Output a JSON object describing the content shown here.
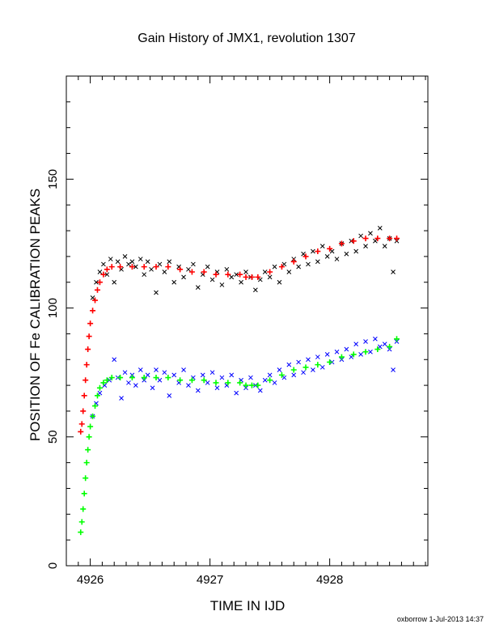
{
  "chart_data": {
    "type": "scatter",
    "title": "Gain History of JMX1, revolution 1307",
    "xlabel": "TIME IN IJD",
    "ylabel": "POSITION OF Fe CALIBRATION PEAKS",
    "xlim": [
      4925.8,
      4928.82
    ],
    "ylim": [
      0,
      190
    ],
    "xticks": [
      4926,
      4927,
      4928
    ],
    "yticks": [
      0,
      50,
      100,
      150
    ],
    "grid": false,
    "legend": "none",
    "series": [
      {
        "marker": "x",
        "color": "#000000",
        "points": [
          [
            4926.02,
            104
          ],
          [
            4926.05,
            110
          ],
          [
            4926.08,
            114
          ],
          [
            4926.11,
            117
          ],
          [
            4926.14,
            113
          ],
          [
            4926.17,
            119
          ],
          [
            4926.2,
            110
          ],
          [
            4926.23,
            118
          ],
          [
            4926.26,
            115
          ],
          [
            4926.29,
            120
          ],
          [
            4926.32,
            117
          ],
          [
            4926.35,
            118
          ],
          [
            4926.38,
            116
          ],
          [
            4926.42,
            119
          ],
          [
            4926.45,
            113
          ],
          [
            4926.48,
            118
          ],
          [
            4926.51,
            115
          ],
          [
            4926.55,
            106
          ],
          [
            4926.58,
            117
          ],
          [
            4926.62,
            114
          ],
          [
            4926.66,
            118
          ],
          [
            4926.7,
            110
          ],
          [
            4926.74,
            116
          ],
          [
            4926.78,
            112
          ],
          [
            4926.82,
            115
          ],
          [
            4926.86,
            117
          ],
          [
            4926.9,
            108
          ],
          [
            4926.94,
            113
          ],
          [
            4926.98,
            116
          ],
          [
            4927.02,
            111
          ],
          [
            4927.06,
            114
          ],
          [
            4927.1,
            109
          ],
          [
            4927.14,
            115
          ],
          [
            4927.18,
            112
          ],
          [
            4927.22,
            113
          ],
          [
            4927.26,
            110
          ],
          [
            4927.3,
            114
          ],
          [
            4927.34,
            112
          ],
          [
            4927.38,
            107
          ],
          [
            4927.42,
            111
          ],
          [
            4927.46,
            114
          ],
          [
            4927.5,
            112
          ],
          [
            4927.54,
            116
          ],
          [
            4927.58,
            110
          ],
          [
            4927.62,
            117
          ],
          [
            4927.66,
            114
          ],
          [
            4927.7,
            119
          ],
          [
            4927.74,
            116
          ],
          [
            4927.78,
            121
          ],
          [
            4927.82,
            117
          ],
          [
            4927.86,
            122
          ],
          [
            4927.9,
            118
          ],
          [
            4927.94,
            124
          ],
          [
            4927.98,
            120
          ],
          [
            4928.02,
            122
          ],
          [
            4928.06,
            119
          ],
          [
            4928.1,
            125
          ],
          [
            4928.14,
            121
          ],
          [
            4928.18,
            126
          ],
          [
            4928.22,
            122
          ],
          [
            4928.26,
            128
          ],
          [
            4928.3,
            124
          ],
          [
            4928.34,
            129
          ],
          [
            4928.38,
            126
          ],
          [
            4928.42,
            131
          ],
          [
            4928.46,
            124
          ],
          [
            4928.5,
            127
          ],
          [
            4928.53,
            114
          ],
          [
            4928.56,
            126
          ]
        ]
      },
      {
        "marker": "x",
        "color": "#0000ff",
        "points": [
          [
            4926.02,
            58
          ],
          [
            4926.05,
            63
          ],
          [
            4926.08,
            67
          ],
          [
            4926.12,
            70
          ],
          [
            4926.16,
            72
          ],
          [
            4926.2,
            80
          ],
          [
            4926.23,
            73
          ],
          [
            4926.26,
            65
          ],
          [
            4926.29,
            75
          ],
          [
            4926.32,
            71
          ],
          [
            4926.35,
            74
          ],
          [
            4926.38,
            70
          ],
          [
            4926.42,
            76
          ],
          [
            4926.45,
            72
          ],
          [
            4926.48,
            74
          ],
          [
            4926.52,
            69
          ],
          [
            4926.55,
            76
          ],
          [
            4926.58,
            72
          ],
          [
            4926.62,
            75
          ],
          [
            4926.66,
            66
          ],
          [
            4926.7,
            74
          ],
          [
            4926.74,
            71
          ],
          [
            4926.78,
            76
          ],
          [
            4926.82,
            70
          ],
          [
            4926.86,
            73
          ],
          [
            4926.9,
            68
          ],
          [
            4926.94,
            74
          ],
          [
            4926.98,
            71
          ],
          [
            4927.02,
            75
          ],
          [
            4927.06,
            69
          ],
          [
            4927.1,
            73
          ],
          [
            4927.14,
            70
          ],
          [
            4927.18,
            74
          ],
          [
            4927.22,
            67
          ],
          [
            4927.26,
            72
          ],
          [
            4927.3,
            69
          ],
          [
            4927.34,
            73
          ],
          [
            4927.38,
            70
          ],
          [
            4927.42,
            68
          ],
          [
            4927.46,
            72
          ],
          [
            4927.5,
            74
          ],
          [
            4927.54,
            71
          ],
          [
            4927.58,
            76
          ],
          [
            4927.62,
            73
          ],
          [
            4927.66,
            78
          ],
          [
            4927.7,
            74
          ],
          [
            4927.74,
            79
          ],
          [
            4927.78,
            75
          ],
          [
            4927.82,
            80
          ],
          [
            4927.86,
            76
          ],
          [
            4927.9,
            81
          ],
          [
            4927.94,
            77
          ],
          [
            4927.98,
            82
          ],
          [
            4928.02,
            79
          ],
          [
            4928.06,
            83
          ],
          [
            4928.1,
            80
          ],
          [
            4928.14,
            84
          ],
          [
            4928.18,
            81
          ],
          [
            4928.22,
            86
          ],
          [
            4928.26,
            82
          ],
          [
            4928.3,
            87
          ],
          [
            4928.34,
            83
          ],
          [
            4928.38,
            88
          ],
          [
            4928.42,
            85
          ],
          [
            4928.46,
            86
          ],
          [
            4928.5,
            84
          ],
          [
            4928.53,
            76
          ],
          [
            4928.56,
            87
          ]
        ]
      },
      {
        "marker": "+",
        "color": "#ff0000",
        "points": [
          [
            4925.92,
            52
          ],
          [
            4925.93,
            55
          ],
          [
            4925.94,
            60
          ],
          [
            4925.95,
            66
          ],
          [
            4925.96,
            72
          ],
          [
            4925.97,
            78
          ],
          [
            4925.98,
            84
          ],
          [
            4925.99,
            89
          ],
          [
            4926.0,
            94
          ],
          [
            4926.02,
            99
          ],
          [
            4926.04,
            103
          ],
          [
            4926.06,
            107
          ],
          [
            4926.08,
            110
          ],
          [
            4926.11,
            113
          ],
          [
            4926.14,
            115
          ],
          [
            4926.18,
            116
          ],
          [
            4926.25,
            116
          ],
          [
            4926.35,
            116
          ],
          [
            4926.45,
            116
          ],
          [
            4926.55,
            116
          ],
          [
            4926.65,
            116
          ],
          [
            4926.75,
            115
          ],
          [
            4926.85,
            114
          ],
          [
            4926.95,
            114
          ],
          [
            4927.05,
            113
          ],
          [
            4927.15,
            113
          ],
          [
            4927.25,
            113
          ],
          [
            4927.3,
            112
          ],
          [
            4927.35,
            112
          ],
          [
            4927.4,
            112
          ],
          [
            4927.5,
            114
          ],
          [
            4927.6,
            116
          ],
          [
            4927.7,
            118
          ],
          [
            4927.8,
            120
          ],
          [
            4927.9,
            122
          ],
          [
            4928.0,
            123
          ],
          [
            4928.1,
            125
          ],
          [
            4928.2,
            126
          ],
          [
            4928.3,
            127
          ],
          [
            4928.4,
            127
          ],
          [
            4928.5,
            127
          ],
          [
            4928.56,
            127
          ]
        ]
      },
      {
        "marker": "+",
        "color": "#00ff00",
        "points": [
          [
            4925.92,
            13
          ],
          [
            4925.93,
            17
          ],
          [
            4925.94,
            22
          ],
          [
            4925.95,
            28
          ],
          [
            4925.96,
            34
          ],
          [
            4925.97,
            40
          ],
          [
            4925.98,
            45
          ],
          [
            4925.99,
            50
          ],
          [
            4926.0,
            54
          ],
          [
            4926.02,
            58
          ],
          [
            4926.04,
            62
          ],
          [
            4926.06,
            66
          ],
          [
            4926.08,
            69
          ],
          [
            4926.11,
            71
          ],
          [
            4926.14,
            72
          ],
          [
            4926.18,
            73
          ],
          [
            4926.25,
            73
          ],
          [
            4926.35,
            73
          ],
          [
            4926.45,
            73
          ],
          [
            4926.55,
            73
          ],
          [
            4926.65,
            73
          ],
          [
            4926.75,
            72
          ],
          [
            4926.85,
            72
          ],
          [
            4926.95,
            72
          ],
          [
            4927.05,
            71
          ],
          [
            4927.15,
            71
          ],
          [
            4927.25,
            71
          ],
          [
            4927.3,
            70
          ],
          [
            4927.35,
            70
          ],
          [
            4927.4,
            70
          ],
          [
            4927.5,
            72
          ],
          [
            4927.6,
            74
          ],
          [
            4927.7,
            76
          ],
          [
            4927.8,
            77
          ],
          [
            4927.9,
            78
          ],
          [
            4928.0,
            79
          ],
          [
            4928.1,
            81
          ],
          [
            4928.2,
            82
          ],
          [
            4928.3,
            83
          ],
          [
            4928.4,
            84
          ],
          [
            4928.5,
            85
          ],
          [
            4928.56,
            88
          ]
        ]
      }
    ]
  },
  "footer": "oxborrow  1-Jul-2013 14:37"
}
